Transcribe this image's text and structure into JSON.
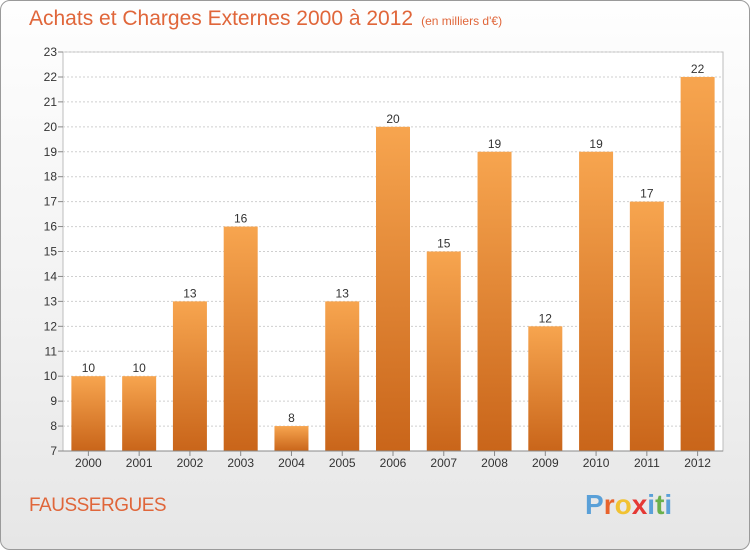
{
  "header": {
    "title": "Achats et Charges Externes 2000 à 2012",
    "unit": "(en milliers d'€)"
  },
  "footer": {
    "commune": "FAUSSERGUES",
    "logo_letters": [
      "P",
      "r",
      "o",
      "x",
      "i",
      "t",
      "i"
    ]
  },
  "colors": {
    "bar_top": "#f7a54f",
    "bar_bottom": "#c9651a",
    "title": "#e0663a",
    "logo": [
      "#5aa0d8",
      "#e8632c",
      "#f1c232",
      "#e53935",
      "#5aa0d8",
      "#6ab04c",
      "#5aa0d8"
    ]
  },
  "chart_data": {
    "type": "bar",
    "categories": [
      "2000",
      "2001",
      "2002",
      "2003",
      "2004",
      "2005",
      "2006",
      "2007",
      "2008",
      "2009",
      "2010",
      "2011",
      "2012"
    ],
    "values": [
      10,
      10,
      13,
      16,
      8,
      13,
      20,
      15,
      19,
      12,
      19,
      17,
      22
    ],
    "title": "Achats et Charges Externes 2000 à 2012",
    "xlabel": "",
    "ylabel": "",
    "ylim": [
      7,
      23
    ],
    "yticks": [
      7,
      8,
      9,
      10,
      11,
      12,
      13,
      14,
      15,
      16,
      17,
      18,
      19,
      20,
      21,
      22,
      23
    ],
    "grid": true
  }
}
